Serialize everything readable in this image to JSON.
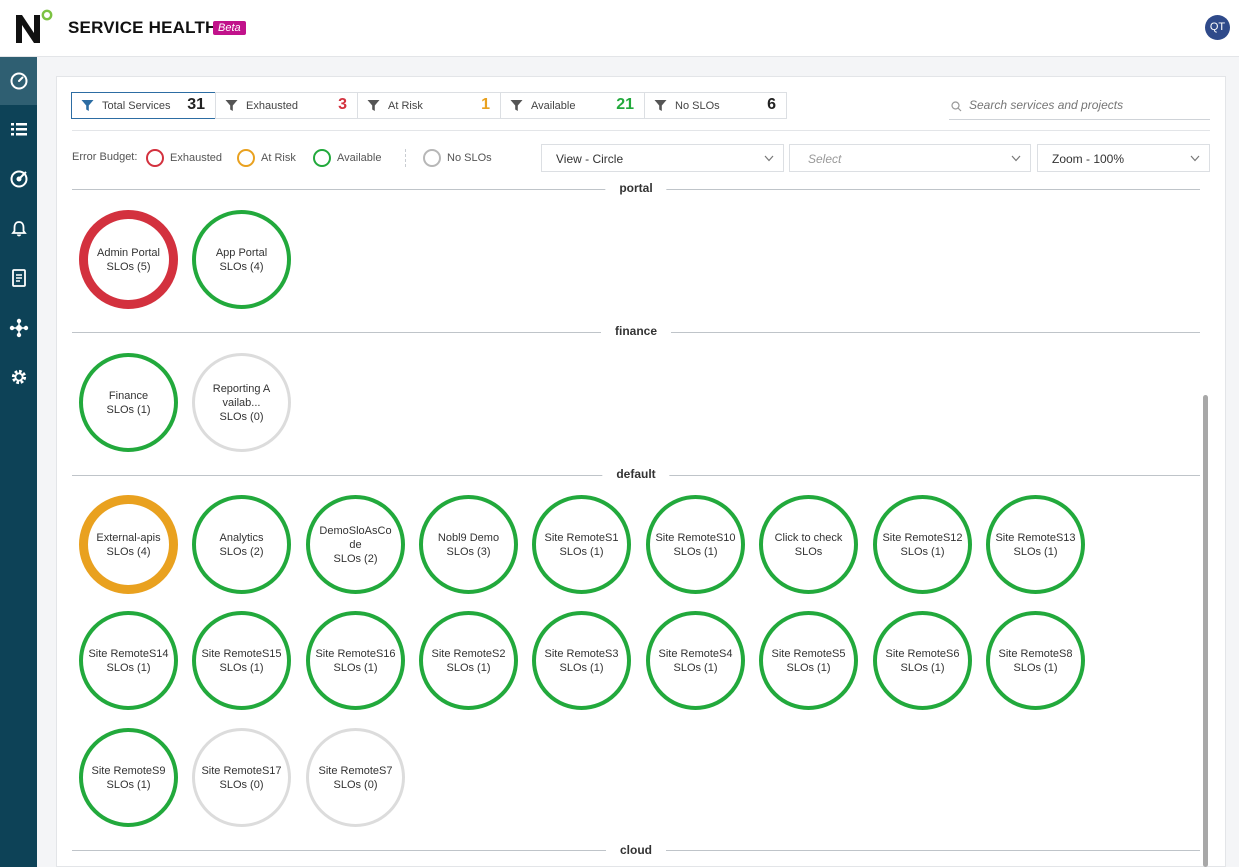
{
  "header": {
    "title": "SERVICE HEALTH",
    "badge": "Beta",
    "avatar": "QT"
  },
  "sidebar": {
    "items": [
      {
        "icon": "dashboard-gauge-icon",
        "active": true
      },
      {
        "icon": "list-icon",
        "active": false
      },
      {
        "icon": "target-icon",
        "active": false
      },
      {
        "icon": "bell-icon",
        "active": false
      },
      {
        "icon": "report-icon",
        "active": false
      },
      {
        "icon": "integrations-icon",
        "active": false
      },
      {
        "icon": "gear-icon",
        "active": false
      }
    ]
  },
  "filters": [
    {
      "label": "Total Services",
      "count": "31",
      "color": "#222222",
      "active": true
    },
    {
      "label": "Exhausted",
      "count": "3",
      "color": "#d3313e",
      "active": false
    },
    {
      "label": "At Risk",
      "count": "1",
      "color": "#e9a11f",
      "active": false
    },
    {
      "label": "Available",
      "count": "21",
      "color": "#22a93c",
      "active": false
    },
    {
      "label": "No SLOs",
      "count": "6",
      "color": "#222222",
      "active": false
    }
  ],
  "search": {
    "placeholder": "Search services and projects"
  },
  "legend": {
    "label": "Error Budget:",
    "items": [
      {
        "label": "Exhausted",
        "color": "#d3313e"
      },
      {
        "label": "At Risk",
        "color": "#e9a11f"
      },
      {
        "label": "Available",
        "color": "#22a93c"
      },
      {
        "label": "No SLOs",
        "color": "#b7b7b7"
      }
    ]
  },
  "selects": {
    "view": "View - Circle",
    "project": "Select",
    "zoom": "Zoom - 100%"
  },
  "groups": [
    {
      "name": "portal",
      "services": [
        {
          "name": "Admin Portal",
          "slos": "SLOs (5)",
          "status": "exhausted"
        },
        {
          "name": "App Portal",
          "slos": "SLOs (4)",
          "status": "available"
        }
      ]
    },
    {
      "name": "finance",
      "services": [
        {
          "name": "Finance",
          "slos": "SLOs (1)",
          "status": "available"
        },
        {
          "name": "Reporting Availab...",
          "slos": "SLOs (0)",
          "status": "noslo"
        }
      ]
    },
    {
      "name": "default",
      "services": [
        {
          "name": "External-apis",
          "slos": "SLOs (4)",
          "status": "atrisk"
        },
        {
          "name": "Analytics",
          "slos": "SLOs (2)",
          "status": "available"
        },
        {
          "name": "DemoSloAsCode",
          "slos": "SLOs (2)",
          "status": "available"
        },
        {
          "name": "Nobl9 Demo",
          "slos": "SLOs (3)",
          "status": "available"
        },
        {
          "name": "Site RemoteS1",
          "slos": "SLOs (1)",
          "status": "available"
        },
        {
          "name": "Site RemoteS10",
          "slos": "SLOs (1)",
          "status": "available"
        },
        {
          "name": "Click to check",
          "slos": "SLOs",
          "status": "available"
        },
        {
          "name": "Site RemoteS12",
          "slos": "SLOs (1)",
          "status": "available"
        },
        {
          "name": "Site RemoteS13",
          "slos": "SLOs (1)",
          "status": "available"
        },
        {
          "name": "Site RemoteS14",
          "slos": "SLOs (1)",
          "status": "available"
        },
        {
          "name": "Site RemoteS15",
          "slos": "SLOs (1)",
          "status": "available"
        },
        {
          "name": "Site RemoteS16",
          "slos": "SLOs (1)",
          "status": "available"
        },
        {
          "name": "Site RemoteS2",
          "slos": "SLOs (1)",
          "status": "available"
        },
        {
          "name": "Site RemoteS3",
          "slos": "SLOs (1)",
          "status": "available"
        },
        {
          "name": "Site RemoteS4",
          "slos": "SLOs (1)",
          "status": "available"
        },
        {
          "name": "Site RemoteS5",
          "slos": "SLOs (1)",
          "status": "available"
        },
        {
          "name": "Site RemoteS6",
          "slos": "SLOs (1)",
          "status": "available"
        },
        {
          "name": "Site RemoteS8",
          "slos": "SLOs (1)",
          "status": "available"
        },
        {
          "name": "Site RemoteS9",
          "slos": "SLOs (1)",
          "status": "available"
        },
        {
          "name": "Site RemoteS17",
          "slos": "SLOs (0)",
          "status": "noslo"
        },
        {
          "name": "Site RemoteS7",
          "slos": "SLOs (0)",
          "status": "noslo"
        }
      ]
    },
    {
      "name": "cloud",
      "services": []
    }
  ]
}
